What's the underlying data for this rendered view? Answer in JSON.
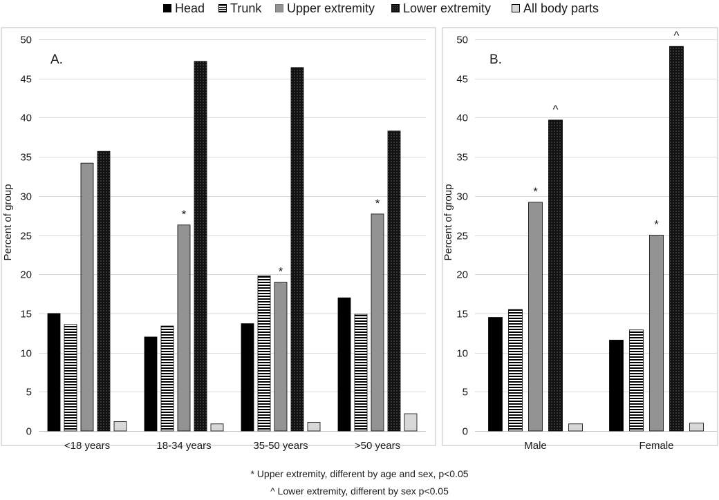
{
  "legend": {
    "items": [
      {
        "key": "head",
        "label": "Head"
      },
      {
        "key": "trunk",
        "label": "Trunk"
      },
      {
        "key": "upper",
        "label": "Upper extremity"
      },
      {
        "key": "lower",
        "label": "Lower extremity"
      },
      {
        "key": "all",
        "label": "All body parts"
      }
    ]
  },
  "footnotes": {
    "upper": "* Upper extremity, different by age and sex, p<0.05",
    "lower": "^ Lower extremity, different by sex p<0.05"
  },
  "colors": {
    "head": "#000000",
    "trunk_stripe": "#000000",
    "upper": "#939393",
    "lower": "#111111",
    "all": "#d8d8d8",
    "grid": "#d9d9d9",
    "axis": "#bfbfbf"
  },
  "chart_data": [
    {
      "type": "bar",
      "title": "A.",
      "ylabel": "Percent of group",
      "xlabel": "",
      "ylim": [
        0,
        50
      ],
      "yticks": [
        0,
        5,
        10,
        15,
        20,
        25,
        30,
        35,
        40,
        45,
        50
      ],
      "grid": true,
      "categories": [
        "<18 years",
        "18-34 years",
        "35-50 years",
        ">50 years"
      ],
      "series": [
        {
          "name": "Head",
          "key": "head",
          "values": [
            15.0,
            12.0,
            13.7,
            17.0
          ]
        },
        {
          "name": "Trunk",
          "key": "trunk",
          "values": [
            13.6,
            13.4,
            19.8,
            14.9
          ]
        },
        {
          "name": "Upper extremity",
          "key": "upper",
          "values": [
            34.2,
            26.3,
            19.0,
            27.7
          ],
          "marks": [
            "",
            "*",
            "*",
            "*"
          ]
        },
        {
          "name": "Lower extremity",
          "key": "lower",
          "values": [
            35.7,
            47.2,
            46.4,
            38.3
          ],
          "marks": [
            "",
            "",
            "",
            ""
          ]
        },
        {
          "name": "All body parts",
          "key": "all",
          "values": [
            1.2,
            0.9,
            1.1,
            2.2
          ]
        }
      ]
    },
    {
      "type": "bar",
      "title": "B.",
      "ylabel": "Percent of group",
      "xlabel": "",
      "ylim": [
        0,
        50
      ],
      "yticks": [
        0,
        5,
        10,
        15,
        20,
        25,
        30,
        35,
        40,
        45,
        50
      ],
      "grid": true,
      "categories": [
        "Male",
        "Female"
      ],
      "series": [
        {
          "name": "Head",
          "key": "head",
          "values": [
            14.5,
            11.6
          ]
        },
        {
          "name": "Trunk",
          "key": "trunk",
          "values": [
            15.5,
            12.9
          ]
        },
        {
          "name": "Upper extremity",
          "key": "upper",
          "values": [
            29.2,
            25.0
          ],
          "marks": [
            "*",
            "*"
          ]
        },
        {
          "name": "Lower extremity",
          "key": "lower",
          "values": [
            39.7,
            49.1
          ],
          "marks": [
            "^",
            "^"
          ]
        },
        {
          "name": "All body parts",
          "key": "all",
          "values": [
            0.9,
            1.0
          ]
        }
      ]
    }
  ]
}
